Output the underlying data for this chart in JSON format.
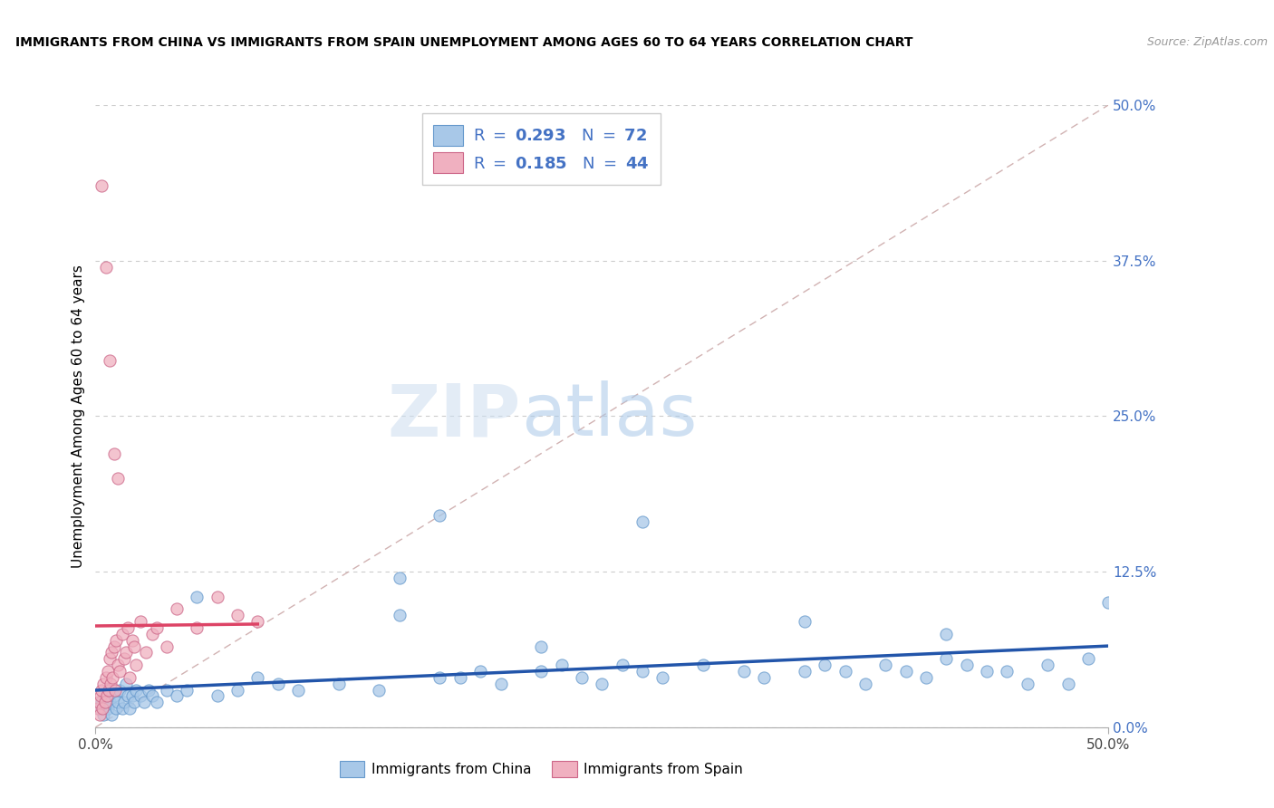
{
  "title": "IMMIGRANTS FROM CHINA VS IMMIGRANTS FROM SPAIN UNEMPLOYMENT AMONG AGES 60 TO 64 YEARS CORRELATION CHART",
  "source": "Source: ZipAtlas.com",
  "ylabel": "Unemployment Among Ages 60 to 64 years",
  "ytick_values": [
    0,
    12.5,
    25.0,
    37.5,
    50.0
  ],
  "ytick_labels": [
    "0.0%",
    "12.5%",
    "25.0%",
    "37.5%",
    "50.0%"
  ],
  "xlim": [
    0,
    50
  ],
  "ylim": [
    0,
    50
  ],
  "R_china": "0.293",
  "N_china": "72",
  "R_spain": "0.185",
  "N_spain": "44",
  "color_china_fill": "#a8c8e8",
  "color_china_edge": "#6699cc",
  "color_spain_fill": "#f0b0c0",
  "color_spain_edge": "#cc6688",
  "color_china_line": "#2255aa",
  "color_spain_line": "#dd4466",
  "color_diag": "#ccaaaa",
  "color_grid": "#cccccc",
  "color_ytick": "#4472c4",
  "watermark_zip": "#d0dff0",
  "watermark_atlas": "#a8c8e8",
  "china_x": [
    0.2,
    0.3,
    0.4,
    0.5,
    0.6,
    0.7,
    0.8,
    0.9,
    1.0,
    1.1,
    1.2,
    1.3,
    1.4,
    1.5,
    1.6,
    1.7,
    1.8,
    1.9,
    2.0,
    2.2,
    2.4,
    2.6,
    2.8,
    3.0,
    3.5,
    4.0,
    4.5,
    5.0,
    6.0,
    7.0,
    8.0,
    9.0,
    10.0,
    12.0,
    14.0,
    15.0,
    17.0,
    18.0,
    19.0,
    20.0,
    22.0,
    23.0,
    24.0,
    25.0,
    26.0,
    27.0,
    28.0,
    30.0,
    32.0,
    33.0,
    35.0,
    36.0,
    37.0,
    38.0,
    39.0,
    40.0,
    41.0,
    42.0,
    43.0,
    44.0,
    45.0,
    46.0,
    47.0,
    48.0,
    49.0,
    50.0,
    27.0,
    17.0,
    35.0,
    22.0,
    42.0,
    15.0
  ],
  "china_y": [
    1.5,
    2.0,
    1.0,
    2.5,
    1.5,
    2.0,
    1.0,
    2.5,
    1.5,
    2.0,
    3.0,
    1.5,
    2.0,
    3.5,
    2.5,
    1.5,
    2.5,
    2.0,
    3.0,
    2.5,
    2.0,
    3.0,
    2.5,
    2.0,
    3.0,
    2.5,
    3.0,
    10.5,
    2.5,
    3.0,
    4.0,
    3.5,
    3.0,
    3.5,
    3.0,
    9.0,
    4.0,
    4.0,
    4.5,
    3.5,
    4.5,
    5.0,
    4.0,
    3.5,
    5.0,
    4.5,
    4.0,
    5.0,
    4.5,
    4.0,
    4.5,
    5.0,
    4.5,
    3.5,
    5.0,
    4.5,
    4.0,
    5.5,
    5.0,
    4.5,
    4.5,
    3.5,
    5.0,
    3.5,
    5.5,
    10.0,
    16.5,
    17.0,
    8.5,
    6.5,
    7.5,
    12.0
  ],
  "spain_x": [
    0.1,
    0.15,
    0.2,
    0.25,
    0.3,
    0.35,
    0.4,
    0.45,
    0.5,
    0.55,
    0.6,
    0.65,
    0.7,
    0.75,
    0.8,
    0.85,
    0.9,
    0.95,
    1.0,
    1.1,
    1.2,
    1.3,
    1.4,
    1.5,
    1.6,
    1.7,
    1.8,
    1.9,
    2.0,
    2.2,
    2.5,
    2.8,
    3.0,
    3.5,
    4.0,
    5.0,
    6.0,
    7.0,
    8.0,
    0.3,
    0.5,
    0.7,
    0.9,
    1.1
  ],
  "spain_y": [
    1.5,
    2.0,
    1.0,
    2.5,
    3.0,
    1.5,
    3.5,
    2.0,
    4.0,
    2.5,
    4.5,
    3.0,
    5.5,
    3.5,
    6.0,
    4.0,
    6.5,
    3.0,
    7.0,
    5.0,
    4.5,
    7.5,
    5.5,
    6.0,
    8.0,
    4.0,
    7.0,
    6.5,
    5.0,
    8.5,
    6.0,
    7.5,
    8.0,
    6.5,
    9.5,
    8.0,
    10.5,
    9.0,
    8.5,
    43.5,
    37.0,
    29.5,
    22.0,
    20.0
  ]
}
